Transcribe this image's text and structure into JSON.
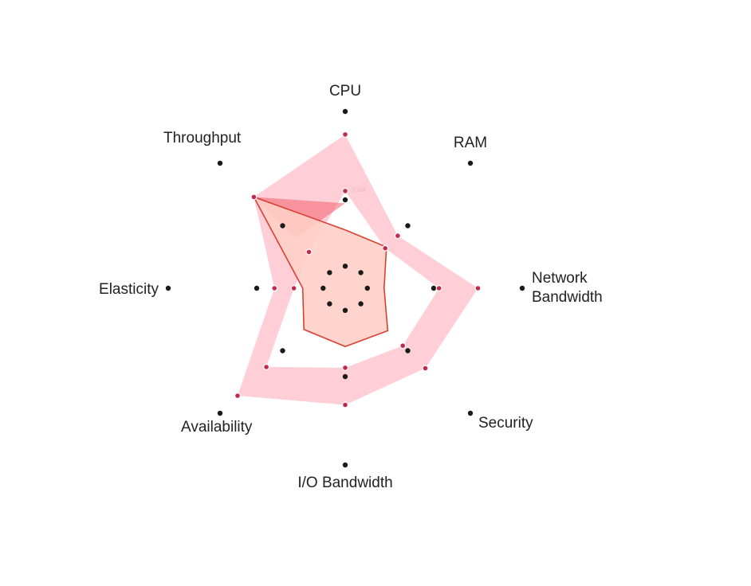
{
  "chart_data": {
    "type": "radar",
    "axes": [
      "CPU",
      "RAM",
      "Network Bandwidth",
      "Security",
      "I/O Bandwidth",
      "Availability",
      "Elasticity",
      "Throughput"
    ],
    "axis_label_lines": [
      [
        "CPU"
      ],
      [
        "RAM"
      ],
      [
        "Network",
        "Bandwidth"
      ],
      [
        "Security"
      ],
      [
        "I/O Bandwidth"
      ],
      [
        "Availability"
      ],
      [
        "Elasticity"
      ],
      [
        "Throughput"
      ]
    ],
    "scale": [
      0,
      10
    ],
    "ring_levels": [
      1.25,
      5,
      10
    ],
    "range_band": {
      "upper": [
        8.7,
        4.2,
        7.5,
        6.4,
        6.6,
        8.6,
        4.0,
        7.3
      ],
      "lower": [
        5.5,
        3.2,
        5.3,
        4.6,
        4.5,
        6.3,
        2.9,
        2.9
      ]
    },
    "profile": [
      3.3,
      3.3,
      2.2,
      3.4,
      3.3,
      3.3,
      2.4,
      7.3
    ],
    "wedge": [
      [
        7,
        7.3
      ],
      [
        7,
        4.0
      ],
      [
        0,
        4.8
      ]
    ],
    "faint_label": "max",
    "colors": {
      "band": "#ffc6d0",
      "band_dot": "#c22a4c",
      "profile_fill": "#ffcfc7",
      "profile_stroke": "#d94032",
      "wedge": "#f2626e",
      "axis_dot": "#1a1a1a"
    },
    "grid": "dots",
    "legend": "none"
  }
}
